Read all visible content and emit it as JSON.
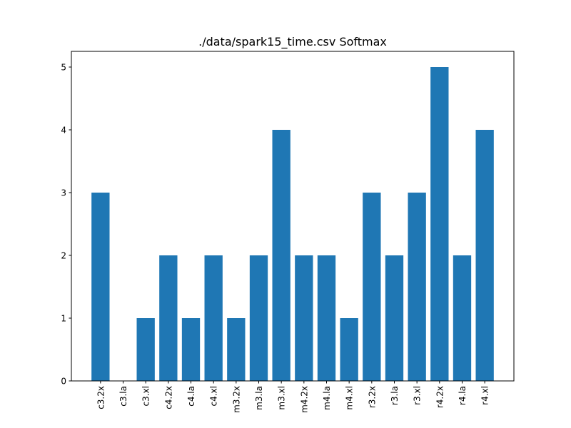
{
  "chart_data": {
    "type": "bar",
    "title": "./data/spark15_time.csv Softmax",
    "xlabel": "",
    "ylabel": "",
    "categories": [
      "c3.2x",
      "c3.la",
      "c3.xl",
      "c4.2x",
      "c4.la",
      "c4.xl",
      "m3.2x",
      "m3.la",
      "m3.xl",
      "m4.2x",
      "m4.la",
      "m4.xl",
      "r3.2x",
      "r3.la",
      "r3.xl",
      "r4.2x",
      "r4.la",
      "r4.xl"
    ],
    "values": [
      3,
      0,
      1,
      2,
      1,
      2,
      1,
      2,
      4,
      2,
      2,
      1,
      3,
      2,
      3,
      5,
      2,
      4
    ],
    "ylim": [
      0,
      5.25
    ],
    "yticks": [
      0,
      1,
      2,
      3,
      4,
      5
    ],
    "grid": false,
    "bar_color": "#1f77b4"
  }
}
